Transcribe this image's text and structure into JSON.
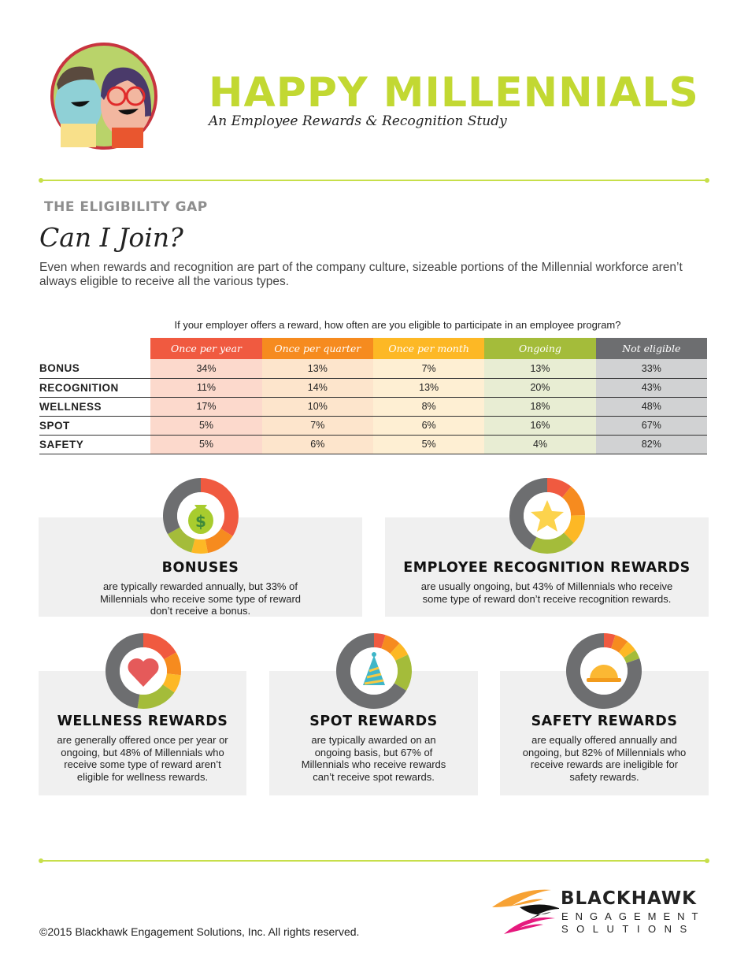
{
  "header": {
    "title": "HAPPY MILLENNIALS",
    "subtitle": "An Employee Rewards & Recognition Study"
  },
  "section": {
    "kicker": "THE ELIGIBILITY GAP",
    "heading": "Can I Join?",
    "intro": "Even when rewards and recognition are part of the company culture, sizeable portions of the Millennial workforce aren’t always eligible to receive all the various types."
  },
  "colors": {
    "year": "#f05a40",
    "quarter": "#f68b1f",
    "month": "#fdb825",
    "ongoing": "#a4bc3a",
    "not_eligible": "#6d6e70",
    "title_green": "#c2d832"
  },
  "chart_data": {
    "type": "table",
    "title": "If your employer offers a reward, how often are you eligible to participate in an employee program?",
    "columns": [
      "Once per year",
      "Once per quarter",
      "Once per month",
      "Ongoing",
      "Not eligible"
    ],
    "rows": [
      {
        "label": "BONUS",
        "values": [
          "34%",
          "13%",
          "7%",
          "13%",
          "33%"
        ]
      },
      {
        "label": "RECOGNITION",
        "values": [
          "11%",
          "14%",
          "13%",
          "20%",
          "43%"
        ]
      },
      {
        "label": "WELLNESS",
        "values": [
          "17%",
          "10%",
          "8%",
          "18%",
          "48%"
        ]
      },
      {
        "label": "SPOT",
        "values": [
          "5%",
          "7%",
          "6%",
          "16%",
          "67%"
        ]
      },
      {
        "label": "SAFETY",
        "values": [
          "5%",
          "6%",
          "5%",
          "4%",
          "82%"
        ]
      }
    ],
    "donuts": [
      {
        "type": "pie",
        "icon": "money-bag-icon",
        "values": [
          34,
          13,
          7,
          13,
          33
        ]
      },
      {
        "type": "pie",
        "icon": "star-icon",
        "values": [
          11,
          14,
          13,
          20,
          43
        ]
      },
      {
        "type": "pie",
        "icon": "heart-icon",
        "values": [
          17,
          10,
          8,
          18,
          48
        ]
      },
      {
        "type": "pie",
        "icon": "party-hat-icon",
        "values": [
          5,
          7,
          6,
          16,
          67
        ]
      },
      {
        "type": "pie",
        "icon": "hard-hat-icon",
        "values": [
          5,
          6,
          5,
          4,
          82
        ]
      }
    ]
  },
  "cards": [
    {
      "title": "BONUSES",
      "text": "are typically rewarded annually, but 33% of Millennials who receive some type of reward don’t receive a bonus."
    },
    {
      "title": "EMPLOYEE RECOGNITION REWARDS",
      "text": "are usually ongoing, but 43% of Millennials who receive some type of reward don’t receive recognition rewards."
    },
    {
      "title": "WELLNESS REWARDS",
      "text": "are generally offered once per year or ongoing, but 48% of Millennials who receive some type of reward aren’t eligible for wellness rewards."
    },
    {
      "title": "SPOT REWARDS",
      "text": "are typically awarded on an ongoing basis, but 67% of Millennials who receive rewards can’t receive spot rewards."
    },
    {
      "title": "SAFETY REWARDS",
      "text": "are equally offered annually and ongoing, but 82% of Millennials who receive rewards are ineligible for safety rewards."
    }
  ],
  "footer": {
    "copyright": "©2015 Blackhawk Engagement Solutions, Inc. All rights reserved.",
    "logo_line1": "BLACKHAWK",
    "logo_line2": "ENGAGEMENT",
    "logo_line3": "SOLUTIONS"
  }
}
